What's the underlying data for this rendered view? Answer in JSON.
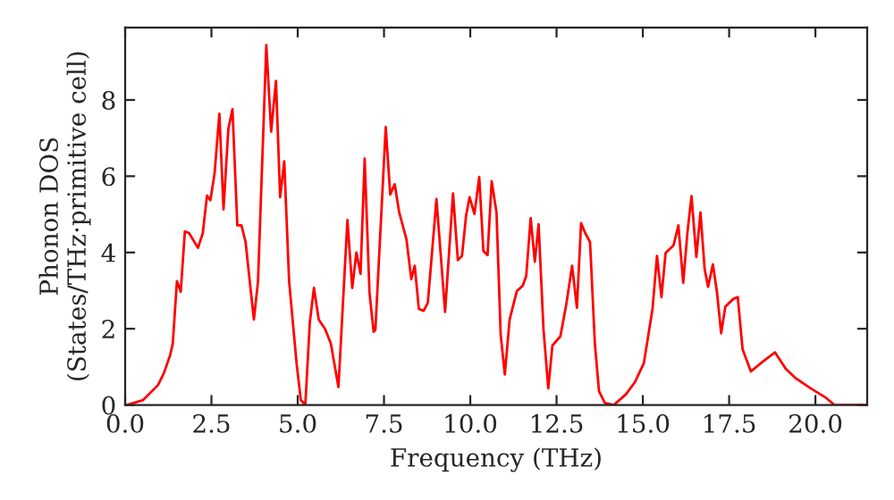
{
  "chart_data": {
    "type": "line",
    "xlabel": "Frequency (THz)",
    "ylabel": "Phonon DOS\n(States/THz·primitive cell)",
    "x": [
      0.05,
      0.52,
      0.95,
      1.12,
      1.3,
      1.38,
      1.5,
      1.61,
      1.73,
      1.85,
      2.11,
      2.25,
      2.37,
      2.47,
      2.59,
      2.73,
      2.85,
      2.99,
      3.11,
      3.25,
      3.37,
      3.49,
      3.59,
      3.73,
      3.85,
      4.09,
      4.23,
      4.37,
      4.49,
      4.61,
      4.75,
      4.97,
      5.09,
      5.22,
      5.35,
      5.47,
      5.61,
      5.79,
      5.96,
      6.18,
      6.44,
      6.58,
      6.7,
      6.82,
      6.94,
      7.08,
      7.2,
      7.25,
      7.55,
      7.68,
      7.81,
      7.94,
      8.15,
      8.29,
      8.39,
      8.51,
      8.65,
      8.77,
      9.02,
      9.27,
      9.5,
      9.64,
      9.76,
      9.88,
      9.98,
      10.12,
      10.26,
      10.38,
      10.5,
      10.62,
      10.76,
      10.88,
      11.0,
      11.14,
      11.35,
      11.52,
      11.62,
      11.75,
      11.87,
      11.98,
      12.12,
      12.26,
      12.38,
      12.61,
      12.78,
      12.95,
      13.09,
      13.21,
      13.33,
      13.47,
      13.61,
      13.73,
      13.9,
      14.16,
      14.51,
      14.77,
      15.03,
      15.28,
      15.41,
      15.54,
      15.66,
      15.89,
      16.03,
      16.17,
      16.29,
      16.41,
      16.55,
      16.67,
      16.79,
      16.89,
      17.03,
      17.15,
      17.27,
      17.39,
      17.62,
      17.75,
      17.89,
      18.13,
      18.48,
      18.83,
      19.14,
      19.43,
      19.86,
      20.29,
      20.55,
      21.5
    ],
    "series": [
      {
        "color": "#ff0000",
        "values": [
          0,
          0.13,
          0.52,
          0.83,
          1.3,
          1.61,
          3.25,
          2.97,
          4.55,
          4.51,
          4.12,
          4.51,
          5.49,
          5.37,
          6.07,
          7.64,
          5.13,
          7.24,
          7.76,
          4.71,
          4.71,
          4.27,
          3.41,
          2.24,
          3.25,
          9.44,
          7.17,
          8.5,
          5.45,
          6.39,
          3.25,
          1.07,
          0.13,
          0,
          2.16,
          3.07,
          2.24,
          2.0,
          1.61,
          0.47,
          4.85,
          3.07,
          4.0,
          3.44,
          6.46,
          2.94,
          1.92,
          1.97,
          7.29,
          5.52,
          5.79,
          5.05,
          4.35,
          3.3,
          3.65,
          2.52,
          2.47,
          2.68,
          5.4,
          2.44,
          5.55,
          3.8,
          3.91,
          4.98,
          5.45,
          5.01,
          5.98,
          4.04,
          3.93,
          5.87,
          5.05,
          1.85,
          0.8,
          2.24,
          2.99,
          3.13,
          3.38,
          4.9,
          3.76,
          4.74,
          2.0,
          0.44,
          1.56,
          1.8,
          2.63,
          3.65,
          2.55,
          4.77,
          4.51,
          4.27,
          1.61,
          0.36,
          0.05,
          0,
          0.28,
          0.6,
          1.1,
          2.52,
          3.91,
          2.83,
          3.99,
          4.19,
          4.71,
          3.21,
          4.51,
          5.48,
          3.88,
          5.05,
          3.57,
          3.1,
          3.69,
          2.94,
          1.88,
          2.58,
          2.78,
          2.83,
          1.46,
          0.88,
          1.14,
          1.38,
          0.95,
          0.7,
          0.44,
          0.2,
          0,
          0
        ]
      }
    ],
    "xlim": [
      0,
      21.5
    ],
    "ylim": [
      0,
      9.9
    ],
    "xticks": [
      {
        "value": 0,
        "label": "0.0"
      },
      {
        "value": 2.5,
        "label": "2.5"
      },
      {
        "value": 5,
        "label": "5.0"
      },
      {
        "value": 7.5,
        "label": "7.5"
      },
      {
        "value": 10,
        "label": "10.0"
      },
      {
        "value": 12.5,
        "label": "12.5"
      },
      {
        "value": 15,
        "label": "15.0"
      },
      {
        "value": 17.5,
        "label": "17.5"
      },
      {
        "value": 20,
        "label": "20.0"
      }
    ],
    "yticks": [
      0,
      2,
      4,
      6,
      8
    ],
    "grid": false,
    "marker": "none",
    "line_style": "solid"
  }
}
